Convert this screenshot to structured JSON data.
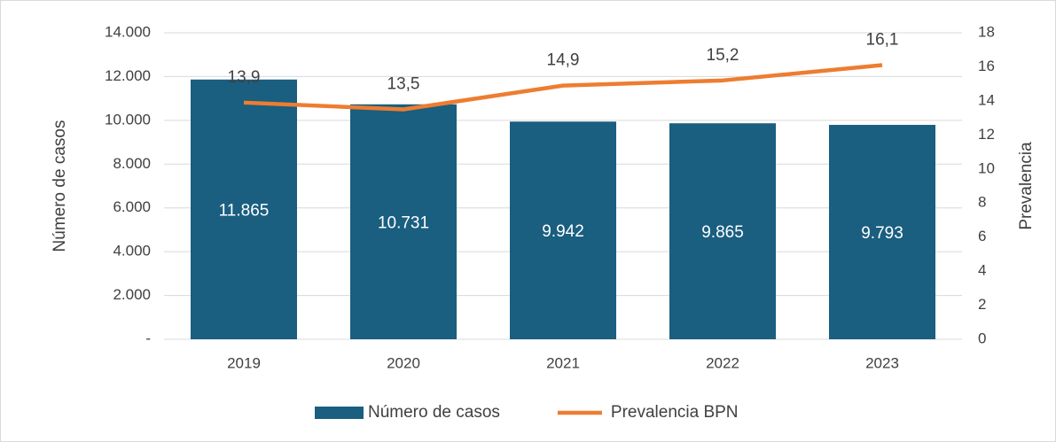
{
  "chart_data": {
    "type": "bar",
    "categories": [
      "2019",
      "2020",
      "2021",
      "2022",
      "2023"
    ],
    "series": [
      {
        "name": "Número de casos",
        "type": "bar",
        "color": "#1a5e80",
        "values": [
          11865,
          10731,
          9942,
          9865,
          9793
        ],
        "value_labels": [
          "11.865",
          "10.731",
          "9.942",
          "9.865",
          "9.793"
        ]
      },
      {
        "name": "Prevalencia BPN",
        "type": "line",
        "axis": "y2",
        "color": "#ed7d31",
        "values": [
          13.9,
          13.5,
          14.9,
          15.2,
          16.1
        ],
        "value_labels": [
          "13,9",
          "13,5",
          "14,9",
          "15,2",
          "16,1"
        ]
      }
    ],
    "ylabel": "Número de casos",
    "y2label": "Prevalencia",
    "ylim": [
      0,
      14000
    ],
    "yticks": [
      {
        "value": 0,
        "label": "-"
      },
      {
        "value": 2000,
        "label": "2.000"
      },
      {
        "value": 4000,
        "label": "4.000"
      },
      {
        "value": 6000,
        "label": "6.000"
      },
      {
        "value": 8000,
        "label": "8.000"
      },
      {
        "value": 10000,
        "label": "10.000"
      },
      {
        "value": 12000,
        "label": "12.000"
      },
      {
        "value": 14000,
        "label": "14.000"
      }
    ],
    "y2lim": [
      0,
      18
    ],
    "y2ticks": [
      0,
      2,
      4,
      6,
      8,
      10,
      12,
      14,
      16,
      18
    ],
    "grid": true,
    "legend": "bottom"
  }
}
